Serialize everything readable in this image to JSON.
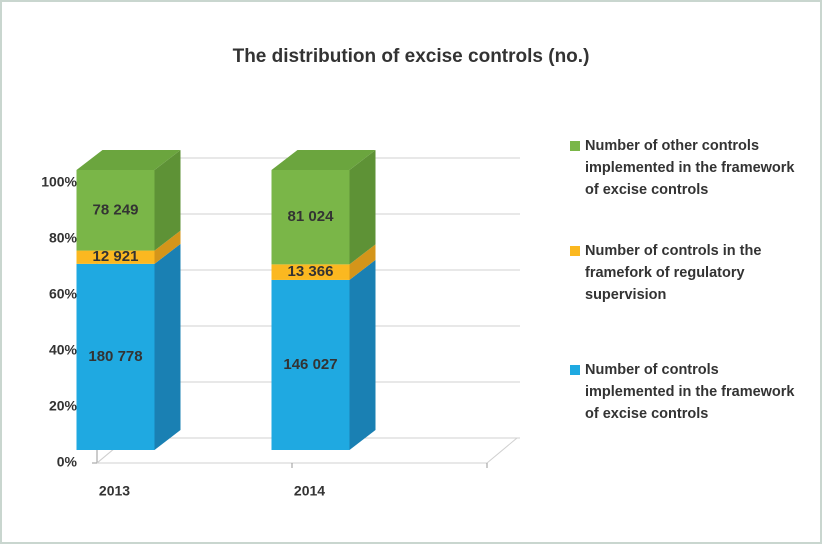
{
  "chart_data": {
    "type": "bar3d_stacked_percent",
    "title": "The distribution of excise controls (no.)",
    "categories": [
      "2013",
      "2014"
    ],
    "series": [
      {
        "name": "Number of controls implemented in the framework of excise controls",
        "color": "#1fa9e1",
        "side_color": "#1a80b3",
        "values": [
          180778,
          146027
        ],
        "value_labels": [
          "180 778",
          "146 027"
        ]
      },
      {
        "name": "Number of controls in the framefork of regulatory supervision",
        "color": "#fbb820",
        "side_color": "#d4951a",
        "values": [
          12921,
          13366
        ],
        "value_labels": [
          "12 921",
          "13 366"
        ]
      },
      {
        "name": "Number of other controls implemented in the framework of excise controls",
        "color": "#7ab648",
        "side_color": "#5e9236",
        "top_color": "#6ba53e",
        "values": [
          78249,
          81024
        ],
        "value_labels": [
          "78 249",
          "81 024"
        ]
      }
    ],
    "ylim": [
      0,
      100
    ],
    "yticks": [
      {
        "value": 0,
        "label": "0%"
      },
      {
        "value": 20,
        "label": "20%"
      },
      {
        "value": 40,
        "label": "40%"
      },
      {
        "value": 60,
        "label": "60%"
      },
      {
        "value": 80,
        "label": "80%"
      },
      {
        "value": 100,
        "label": "100%"
      }
    ],
    "grid": true,
    "legend": "right"
  }
}
